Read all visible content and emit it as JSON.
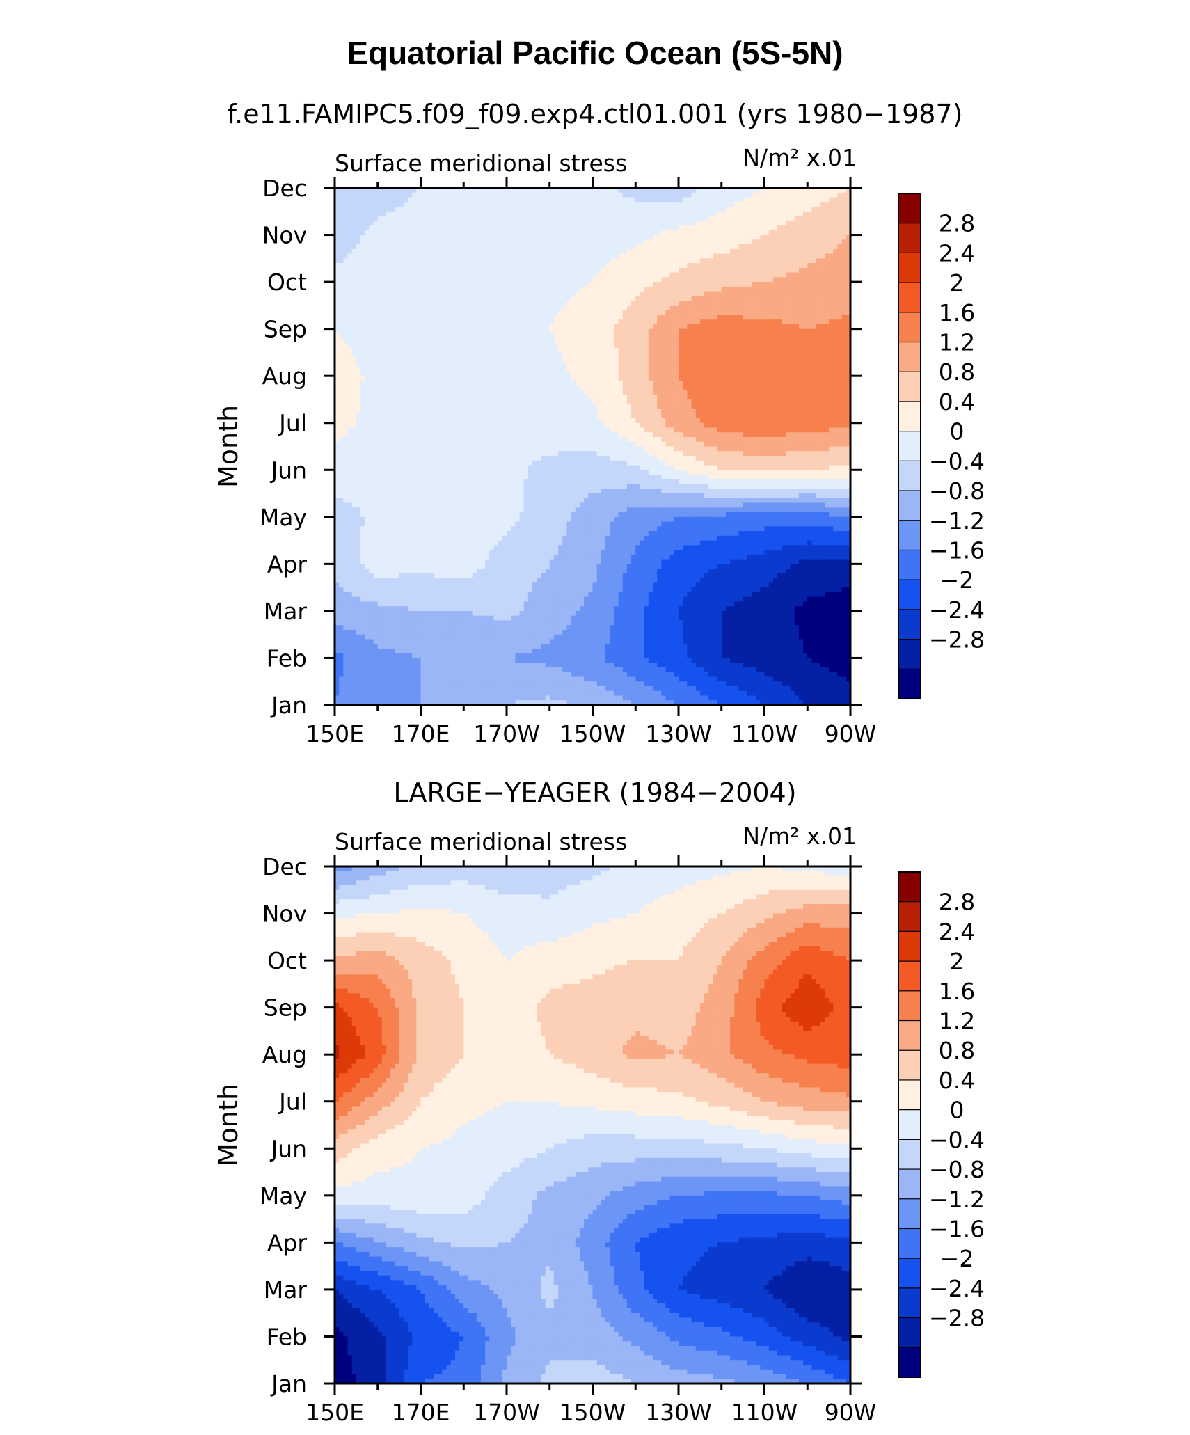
{
  "page": {
    "main_title": "Equatorial Pacific Ocean (5S-5N)"
  },
  "chart_data": [
    {
      "type": "heatmap",
      "panel_title": "f.e11.FAMIPC5.f09_f09.exp4.ctl01.001 (yrs 1980−1987)",
      "variable_label": "Surface meridional stress",
      "units_label": "N/m² x.01",
      "ylabel": "Month",
      "xlabel": "",
      "x_ticks": [
        "150E",
        "170E",
        "170W",
        "150W",
        "130W",
        "110W",
        "90W"
      ],
      "y_ticks": [
        "Jan",
        "Feb",
        "Mar",
        "Apr",
        "May",
        "Jun",
        "Jul",
        "Aug",
        "Sep",
        "Oct",
        "Nov",
        "Dec"
      ],
      "xlim": [
        150,
        270
      ],
      "ylim": [
        1,
        12
      ],
      "grid": false,
      "longitudes": [
        150,
        160,
        170,
        180,
        190,
        200,
        210,
        220,
        230,
        240,
        250,
        260,
        270
      ],
      "values": [
        [
          -1.2,
          -0.8,
          -0.8,
          -0.6,
          -0.4,
          -0.3,
          -0.5,
          -0.8,
          -1.2,
          -1.6,
          -2.0,
          -2.4,
          -2.6
        ],
        [
          -1.3,
          -0.9,
          -0.8,
          -0.8,
          -0.8,
          -0.9,
          -1.1,
          -1.5,
          -1.9,
          -2.4,
          -2.6,
          -2.8,
          -3.0
        ],
        [
          -0.6,
          -0.5,
          -0.4,
          -0.4,
          -0.3,
          -0.6,
          -0.9,
          -1.5,
          -2.0,
          -2.4,
          -2.6,
          -2.9,
          -3.0
        ],
        [
          -0.3,
          0.2,
          0.1,
          0.2,
          -0.2,
          -0.4,
          -0.7,
          -1.3,
          -1.8,
          -2.0,
          -2.2,
          -2.5,
          -2.6
        ],
        [
          -0.2,
          0.1,
          0.2,
          0.2,
          0.1,
          -0.2,
          -0.6,
          -1.0,
          -1.2,
          -1.3,
          -1.4,
          -1.4,
          -1.2
        ],
        [
          0.3,
          0.1,
          0.2,
          0.2,
          0.1,
          -0.1,
          -0.2,
          -0.1,
          0.4,
          0.8,
          0.9,
          0.8,
          0.7
        ],
        [
          0.5,
          0.3,
          0.2,
          0.2,
          0.1,
          0.2,
          0.3,
          0.8,
          1.4,
          1.8,
          1.9,
          1.8,
          1.7
        ],
        [
          0.6,
          0.3,
          0.2,
          0.2,
          0.2,
          0.3,
          0.5,
          1.0,
          1.6,
          2.0,
          2.0,
          1.9,
          2.0
        ],
        [
          0.4,
          0.2,
          0.2,
          0.2,
          0.3,
          0.4,
          0.6,
          1.0,
          1.6,
          1.8,
          1.7,
          1.6,
          1.7
        ],
        [
          0.1,
          0.2,
          0.2,
          0.2,
          0.3,
          0.3,
          0.4,
          0.7,
          0.9,
          1.1,
          1.2,
          1.3,
          1.4
        ],
        [
          -0.2,
          0.1,
          0.2,
          0.2,
          0.1,
          0.2,
          0.2,
          0.3,
          0.5,
          0.6,
          0.8,
          1.0,
          1.2
        ],
        [
          -0.3,
          -0.2,
          0.0,
          0.1,
          0.2,
          0.2,
          0.1,
          -0.1,
          -0.2,
          0.2,
          0.4,
          0.6,
          0.8
        ]
      ],
      "contour_levels": [
        -2.8,
        -2.4,
        -2,
        -1.6,
        -1.2,
        -0.8,
        -0.4,
        0,
        0.4,
        0.8,
        1.2,
        1.6,
        2,
        2.4,
        2.8
      ],
      "colorbar_labels": [
        "2.8",
        "2.4",
        "2",
        "1.6",
        "1.2",
        "0.8",
        "0.4",
        "0",
        "−0.4",
        "−0.8",
        "−1.2",
        "−1.6",
        "−2",
        "−2.4",
        "−2.8"
      ]
    },
    {
      "type": "heatmap",
      "panel_title": "LARGE−YEAGER (1984−2004)",
      "variable_label": "Surface meridional stress",
      "units_label": "N/m² x.01",
      "ylabel": "Month",
      "xlabel": "",
      "x_ticks": [
        "150E",
        "170E",
        "170W",
        "150W",
        "130W",
        "110W",
        "90W"
      ],
      "y_ticks": [
        "Jan",
        "Feb",
        "Mar",
        "Apr",
        "May",
        "Jun",
        "Jul",
        "Aug",
        "Sep",
        "Oct",
        "Nov",
        "Dec"
      ],
      "xlim": [
        150,
        270
      ],
      "ylim": [
        1,
        12
      ],
      "grid": false,
      "longitudes": [
        150,
        160,
        170,
        180,
        190,
        200,
        210,
        220,
        230,
        240,
        250,
        260,
        270
      ],
      "values": [
        [
          -3.0,
          -2.6,
          -1.6,
          -1.5,
          -0.7,
          -0.3,
          -0.2,
          -0.4,
          -0.6,
          -0.7,
          -0.9,
          -1.2,
          -1.6
        ],
        [
          -2.9,
          -2.5,
          -1.9,
          -1.6,
          -0.9,
          -0.5,
          -0.6,
          -0.9,
          -1.3,
          -1.5,
          -1.8,
          -2.2,
          -2.5
        ],
        [
          -2.4,
          -2.0,
          -1.6,
          -1.0,
          -0.7,
          -0.3,
          -0.8,
          -1.5,
          -2.0,
          -2.2,
          -2.4,
          -2.8,
          -2.6
        ],
        [
          -1.2,
          -0.8,
          -0.5,
          -0.3,
          -0.4,
          -0.5,
          -1.0,
          -1.6,
          -1.9,
          -2.0,
          -2.1,
          -2.2,
          -2.1
        ],
        [
          0.3,
          0.2,
          0.3,
          0.2,
          -0.2,
          -0.5,
          -0.7,
          -1.0,
          -1.2,
          -1.3,
          -1.3,
          -1.2,
          -1.0
        ],
        [
          1.0,
          0.6,
          0.4,
          0.3,
          0.2,
          0.0,
          -0.2,
          -0.2,
          -0.2,
          -0.1,
          0.0,
          0.2,
          0.3
        ],
        [
          2.0,
          1.4,
          0.8,
          0.5,
          0.4,
          0.4,
          0.5,
          0.6,
          0.7,
          0.9,
          1.2,
          1.4,
          1.5
        ],
        [
          2.9,
          2.2,
          1.1,
          0.8,
          0.6,
          0.8,
          1.0,
          1.3,
          1.2,
          1.5,
          1.9,
          2.1,
          2.2
        ],
        [
          2.5,
          2.0,
          1.1,
          0.8,
          0.6,
          0.9,
          1.0,
          1.1,
          1.0,
          1.4,
          2.2,
          2.7,
          2.2
        ],
        [
          1.3,
          1.4,
          1.0,
          0.7,
          0.4,
          0.6,
          0.7,
          0.8,
          0.8,
          1.2,
          1.8,
          2.3,
          2.0
        ],
        [
          0.3,
          0.4,
          0.5,
          0.4,
          0.2,
          0.1,
          0.3,
          0.4,
          0.6,
          0.8,
          1.1,
          1.4,
          1.4
        ],
        [
          -1.0,
          -0.6,
          -0.3,
          -0.2,
          -0.3,
          -0.2,
          -0.1,
          0.1,
          0.2,
          0.3,
          0.4,
          0.3,
          0.1
        ]
      ],
      "contour_levels": [
        -2.8,
        -2.4,
        -2,
        -1.6,
        -1.2,
        -0.8,
        -0.4,
        0,
        0.4,
        0.8,
        1.2,
        1.6,
        2,
        2.4,
        2.8
      ],
      "colorbar_labels": [
        "2.8",
        "2.4",
        "2",
        "1.6",
        "1.2",
        "0.8",
        "0.4",
        "0",
        "−0.4",
        "−0.8",
        "−1.2",
        "−1.6",
        "−2",
        "−2.4",
        "−2.8"
      ]
    }
  ],
  "colors": {
    "palette": [
      "#00007e",
      "#0420a4",
      "#0b3ace",
      "#1652f0",
      "#3f74f6",
      "#6c95f5",
      "#9ab6f6",
      "#c4d7fa",
      "#e2eefc",
      "#fff0e2",
      "#fcd0b6",
      "#f9a983",
      "#f7804f",
      "#f45a24",
      "#de3a08",
      "#b82004",
      "#870000"
    ]
  }
}
